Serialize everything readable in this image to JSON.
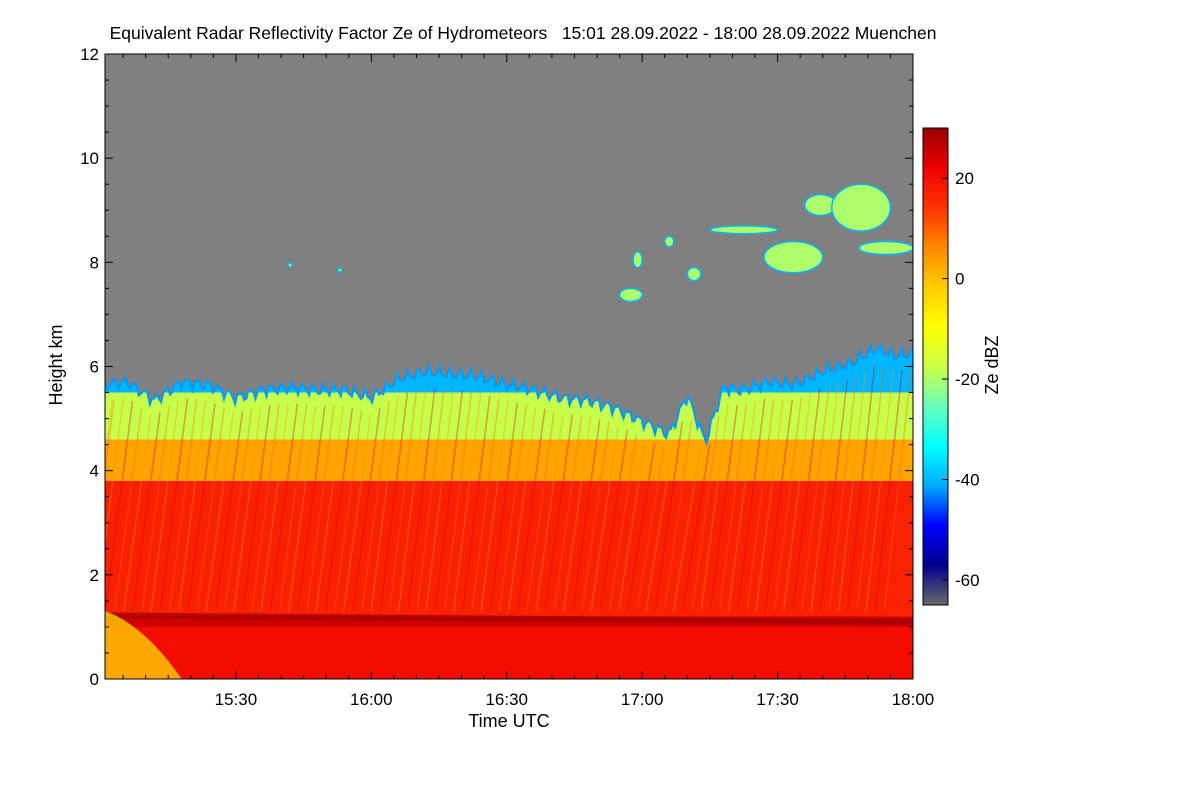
{
  "chart_data": {
    "type": "heatmap",
    "title": "Equivalent Radar Reflectivity Factor Ze of Hydrometeors   15:01 28.09.2022 - 18:00 28.09.2022 Muenchen",
    "xlabel": "Time UTC",
    "ylabel": "Height km",
    "colorbar_label": "Ze dBZ",
    "x_unit": "minutes after 15:00 UTC",
    "xlim": [
      1,
      180
    ],
    "ylim": [
      0,
      12
    ],
    "x_ticks": [
      {
        "value": 30,
        "label": "15:30"
      },
      {
        "value": 60,
        "label": "16:00"
      },
      {
        "value": 90,
        "label": "16:30"
      },
      {
        "value": 120,
        "label": "17:00"
      },
      {
        "value": 150,
        "label": "17:30"
      },
      {
        "value": 180,
        "label": "18:00"
      }
    ],
    "y_ticks": [
      {
        "value": 0,
        "label": "0"
      },
      {
        "value": 2,
        "label": "2"
      },
      {
        "value": 4,
        "label": "4"
      },
      {
        "value": 6,
        "label": "6"
      },
      {
        "value": 8,
        "label": "8"
      },
      {
        "value": 10,
        "label": "10"
      },
      {
        "value": 12,
        "label": "12"
      }
    ],
    "colorbar_range": [
      -65,
      30
    ],
    "colorbar_ticks": [
      {
        "value": 20,
        "label": "20"
      },
      {
        "value": 0,
        "label": "0"
      },
      {
        "value": -20,
        "label": "-20"
      },
      {
        "value": -40,
        "label": "-40"
      },
      {
        "value": -60,
        "label": "-60"
      }
    ],
    "colormap": [
      "#696969",
      "#000090",
      "#0000ff",
      "#00aaff",
      "#00ffff",
      "#66ffbb",
      "#ccff44",
      "#ffff00",
      "#ffcc00",
      "#ff8800",
      "#ff3300",
      "#ee0000",
      "#990000"
    ],
    "background_color": "#808080",
    "cloud_top": {
      "x": [
        1,
        6,
        12,
        18,
        24,
        30,
        36,
        42,
        48,
        54,
        60,
        66,
        72,
        78,
        84,
        90,
        96,
        102,
        108,
        114,
        120,
        126,
        130,
        134,
        138,
        142,
        148,
        154,
        160,
        166,
        172,
        176,
        180
      ],
      "top_km": [
        5.65,
        5.7,
        5.35,
        5.7,
        5.65,
        5.4,
        5.55,
        5.6,
        5.55,
        5.55,
        5.4,
        5.75,
        5.9,
        5.85,
        5.8,
        5.65,
        5.55,
        5.4,
        5.35,
        5.2,
        4.95,
        4.7,
        5.45,
        4.55,
        5.6,
        5.55,
        5.7,
        5.65,
        5.9,
        6.05,
        6.35,
        6.2,
        6.25
      ]
    },
    "upper_cloud_patches": [
      {
        "x": [
          118,
          120
        ],
        "height_km": [
          7.9,
          8.2
        ]
      },
      {
        "x": [
          115,
          120
        ],
        "height_km": [
          7.25,
          7.5
        ]
      },
      {
        "x": [
          125,
          127
        ],
        "height_km": [
          8.3,
          8.5
        ]
      },
      {
        "x": [
          130,
          133
        ],
        "height_km": [
          7.65,
          7.9
        ]
      },
      {
        "x": [
          135,
          150
        ],
        "height_km": [
          8.55,
          8.7
        ]
      },
      {
        "x": [
          147,
          160
        ],
        "height_km": [
          7.8,
          8.4
        ]
      },
      {
        "x": [
          156,
          163
        ],
        "height_km": [
          8.9,
          9.3
        ]
      },
      {
        "x": [
          162,
          175
        ],
        "height_km": [
          8.6,
          9.5
        ]
      },
      {
        "x": [
          168,
          180
        ],
        "height_km": [
          8.15,
          8.4
        ]
      },
      {
        "x": [
          42,
          42
        ],
        "height_km": [
          7.95,
          7.95
        ]
      },
      {
        "x": [
          53,
          53
        ],
        "height_km": [
          7.85,
          7.85
        ]
      }
    ],
    "melting_layer_km": 1.1,
    "layers": [
      {
        "from_km": 0,
        "to_km": 1.0,
        "ze_dbz": 20
      },
      {
        "from_km": 1.0,
        "to_km": 1.2,
        "ze_dbz": 25
      },
      {
        "from_km": 1.2,
        "to_km": 3.8,
        "ze_dbz": 17
      },
      {
        "from_km": 3.8,
        "to_km": 4.6,
        "ze_dbz": 3
      },
      {
        "from_km": 4.6,
        "to_km": 5.5,
        "ze_dbz": -18
      },
      {
        "from_km": 5.5,
        "to_km": 5.7,
        "ze_dbz": -40
      }
    ]
  }
}
